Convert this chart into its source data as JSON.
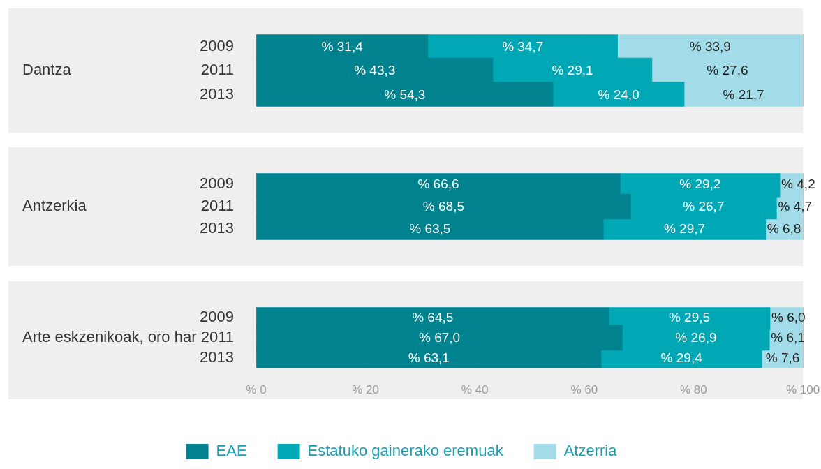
{
  "chart_data": [
    {
      "type": "bar",
      "orientation": "horizontal",
      "stacked": true,
      "ylabel": "Dantza",
      "categories": [
        "2009",
        "2011",
        "2013"
      ],
      "series": [
        {
          "color": "#00828f",
          "values": [
            31.4,
            43.3,
            54.3
          ],
          "value_labels": [
            "% 31,4",
            "% 43,3",
            "% 54,3"
          ]
        },
        {
          "color": "#00a8b6",
          "values": [
            34.7,
            29.1,
            24.0
          ],
          "value_labels": [
            "% 34,7",
            "% 29,1",
            "% 24,0"
          ]
        },
        {
          "color": "#a3dce9",
          "values": [
            33.9,
            27.6,
            21.7
          ],
          "value_labels": [
            "% 33,9",
            "% 27,6",
            "% 21,7"
          ]
        }
      ],
      "xlim": [
        0,
        100
      ],
      "xticks": [
        {
          "value": 0,
          "label": null
        },
        {
          "value": 20,
          "label": null
        },
        {
          "value": 40,
          "label": null
        },
        {
          "value": 60,
          "label": null
        },
        {
          "value": 80,
          "label": null
        },
        {
          "value": 100,
          "label": null
        }
      ],
      "grid": "x",
      "tick_labels": "y"
    },
    {
      "type": "bar",
      "orientation": "horizontal",
      "stacked": true,
      "ylabel": "Antzerkia",
      "categories": [
        "2009",
        "2011",
        "2013"
      ],
      "series": [
        {
          "color": "#00828f",
          "values": [
            66.6,
            68.5,
            63.5
          ],
          "value_labels": [
            "% 66,6",
            "% 68,5",
            "% 63,5"
          ]
        },
        {
          "color": "#00a8b6",
          "values": [
            29.2,
            26.7,
            29.7
          ],
          "value_labels": [
            "% 29,2",
            "% 26,7",
            "% 29,7"
          ]
        },
        {
          "color": "#a3dce9",
          "values": [
            4.2,
            4.7,
            6.8
          ],
          "value_labels": [
            "% 4,2",
            "% 4,7",
            "% 6,8"
          ]
        }
      ],
      "xlim": [
        0,
        100
      ],
      "xticks": [
        {
          "value": 0,
          "label": null
        },
        {
          "value": 20,
          "label": null
        },
        {
          "value": 40,
          "label": null
        },
        {
          "value": 60,
          "label": null
        },
        {
          "value": 80,
          "label": null
        },
        {
          "value": 100,
          "label": null
        }
      ],
      "grid": "x",
      "tick_labels": "y"
    },
    {
      "type": "bar",
      "orientation": "horizontal",
      "stacked": true,
      "ylabel": "Arte eskzenikoak, oro har",
      "categories": [
        "2009",
        "2011",
        "2013"
      ],
      "series": [
        {
          "name": "EAE",
          "color": "#00828f",
          "values": [
            64.5,
            67.0,
            63.1
          ],
          "value_labels": [
            "% 64,5",
            "% 67,0",
            "% 63,1"
          ]
        },
        {
          "name": "Estatuko gainerako eremuak",
          "color": "#00a8b6",
          "values": [
            29.5,
            26.9,
            29.4
          ],
          "value_labels": [
            "% 29,5",
            "% 26,9",
            "% 29,4"
          ]
        },
        {
          "name": "Atzerria",
          "color": "#a3dce9",
          "values": [
            6.0,
            6.1,
            7.6
          ],
          "value_labels": [
            "% 6,0",
            "% 6,1",
            "% 7,6"
          ]
        }
      ],
      "xlim": [
        0,
        100
      ],
      "xticks": [
        {
          "value": 0,
          "label": "% 0"
        },
        {
          "value": 20,
          "label": "% 20"
        },
        {
          "value": 40,
          "label": "% 40"
        },
        {
          "value": 60,
          "label": "% 60"
        },
        {
          "value": 80,
          "label": "% 80"
        },
        {
          "value": 100,
          "label": "% 100"
        }
      ],
      "grid": "x",
      "legend": "bottom"
    }
  ]
}
